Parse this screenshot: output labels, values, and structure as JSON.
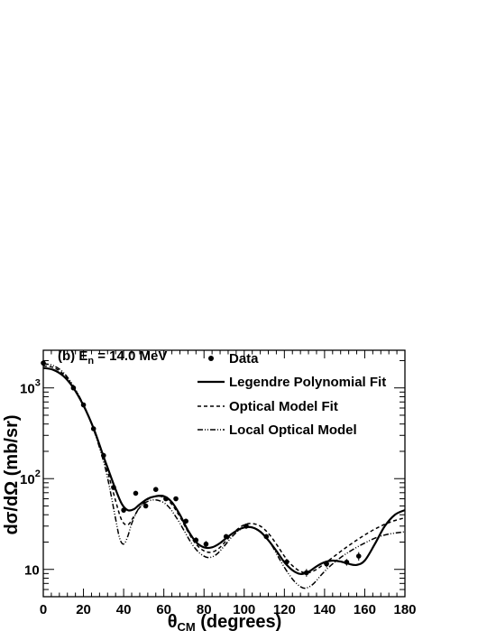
{
  "chart_data": {
    "type": "line",
    "annotation": {
      "main": "(b) E",
      "sub": "n",
      "tail": " = 14.0 MeV"
    },
    "xlabel": {
      "main": "θ",
      "sub": "CM",
      "tail": " (degrees)"
    },
    "ylabel": "dσ/dΩ (mb/sr)",
    "xlim": [
      0,
      180
    ],
    "ylim": [
      5,
      2600
    ],
    "yscale": "log",
    "x_ticks": [
      0,
      20,
      40,
      60,
      80,
      100,
      120,
      140,
      160,
      180
    ],
    "y_ticks": [
      {
        "value": 10,
        "base": "10",
        "exp": ""
      },
      {
        "value": 100,
        "base": "10",
        "exp": "2"
      },
      {
        "value": 1000,
        "base": "10",
        "exp": "3"
      }
    ],
    "grid": false,
    "legend_position": "top-right",
    "legend": [
      {
        "label": "Data",
        "style": "marker"
      },
      {
        "label": "Legendre Polynomial Fit",
        "style": "solid"
      },
      {
        "label": "Optical Model Fit",
        "style": "dashed"
      },
      {
        "label": "Local Optical Model",
        "style": "dashdotdot"
      }
    ],
    "series": [
      {
        "name": "Data",
        "style": "marker",
        "points": [
          {
            "x": 0,
            "y": 1880,
            "err": 60
          },
          {
            "x": 15,
            "y": 1000,
            "err": 40
          },
          {
            "x": 20,
            "y": 650,
            "err": 30
          },
          {
            "x": 25,
            "y": 355,
            "err": 15
          },
          {
            "x": 30,
            "y": 180,
            "err": 12
          },
          {
            "x": 35,
            "y": 80,
            "err": 5
          },
          {
            "x": 40,
            "y": 45,
            "err": 3
          },
          {
            "x": 46,
            "y": 69,
            "err": 3
          },
          {
            "x": 51,
            "y": 50,
            "err": 2
          },
          {
            "x": 56,
            "y": 76,
            "err": 3
          },
          {
            "x": 61,
            "y": 60,
            "err": 3
          },
          {
            "x": 66,
            "y": 60,
            "err": 3
          },
          {
            "x": 71,
            "y": 34,
            "err": 2
          },
          {
            "x": 76,
            "y": 21,
            "err": 1.5
          },
          {
            "x": 81,
            "y": 19,
            "err": 1.5
          },
          {
            "x": 91,
            "y": 23,
            "err": 1.5
          },
          {
            "x": 101,
            "y": 30,
            "err": 2
          },
          {
            "x": 111,
            "y": 23,
            "err": 1.5
          },
          {
            "x": 121,
            "y": 12,
            "err": 1
          },
          {
            "x": 131,
            "y": 9.2,
            "err": 0.9
          },
          {
            "x": 141,
            "y": 11.5,
            "err": 1
          },
          {
            "x": 151,
            "y": 12,
            "err": 1
          },
          {
            "x": 157,
            "y": 14,
            "err": 1.5
          }
        ]
      },
      {
        "name": "Legendre Polynomial Fit",
        "style": "solid",
        "x": [
          0,
          5,
          10,
          15,
          20,
          25,
          30,
          33,
          36,
          39,
          42,
          45,
          48,
          52,
          56,
          60,
          64,
          68,
          72,
          76,
          80,
          84,
          88,
          92,
          96,
          100,
          104,
          108,
          112,
          116,
          120,
          124,
          128,
          132,
          136,
          140,
          144,
          148,
          152,
          156,
          160,
          165,
          170,
          175,
          180
        ],
        "y": [
          1660,
          1580,
          1350,
          1000,
          640,
          360,
          175,
          115,
          76,
          53,
          45,
          46,
          52,
          60,
          64,
          64,
          55,
          40,
          27,
          20,
          17.5,
          17.5,
          19.5,
          23,
          26.5,
          29,
          29,
          26,
          21,
          16,
          12,
          9.8,
          8.9,
          9.4,
          10.8,
          12,
          12.5,
          12.2,
          11.5,
          11.2,
          12.5,
          19,
          30,
          40,
          45
        ]
      },
      {
        "name": "Optical Model Fit",
        "style": "dashed",
        "x": [
          0,
          5,
          10,
          15,
          20,
          25,
          30,
          33,
          36,
          39,
          42,
          45,
          48,
          52,
          56,
          60,
          64,
          68,
          72,
          76,
          80,
          84,
          88,
          92,
          96,
          100,
          104,
          108,
          112,
          116,
          120,
          124,
          128,
          132,
          136,
          140,
          144,
          150,
          156,
          162,
          168,
          174,
          180
        ],
        "y": [
          1750,
          1680,
          1420,
          1020,
          650,
          360,
          170,
          100,
          57,
          35,
          31,
          38,
          48,
          59,
          64,
          62,
          52,
          38,
          26,
          19,
          16,
          15.5,
          17.5,
          22,
          27,
          31,
          32,
          30,
          25,
          19,
          14,
          11,
          9.5,
          9.2,
          10,
          11.6,
          13.5,
          17,
          21,
          25.5,
          30,
          34,
          37
        ]
      },
      {
        "name": "Local Optical Model",
        "style": "dashdotdot",
        "x": [
          0,
          5,
          10,
          15,
          20,
          25,
          30,
          33,
          36,
          38,
          40,
          42,
          44,
          47,
          50,
          54,
          58,
          62,
          66,
          70,
          74,
          78,
          82,
          86,
          90,
          94,
          98,
          102,
          106,
          110,
          114,
          118,
          122,
          126,
          130,
          134,
          138,
          142,
          148,
          154,
          160,
          166,
          172,
          180
        ],
        "y": [
          1850,
          1760,
          1480,
          1050,
          650,
          350,
          155,
          80,
          36,
          22,
          19,
          23,
          32,
          45,
          53,
          58,
          57,
          50,
          38,
          27,
          19,
          15,
          13.5,
          14.5,
          18,
          23,
          27.5,
          29.5,
          28,
          24,
          18,
          12.5,
          9,
          7,
          6.2,
          6.8,
          8.5,
          10.5,
          13.5,
          16.5,
          19.5,
          22.5,
          24.5,
          26
        ]
      }
    ]
  }
}
